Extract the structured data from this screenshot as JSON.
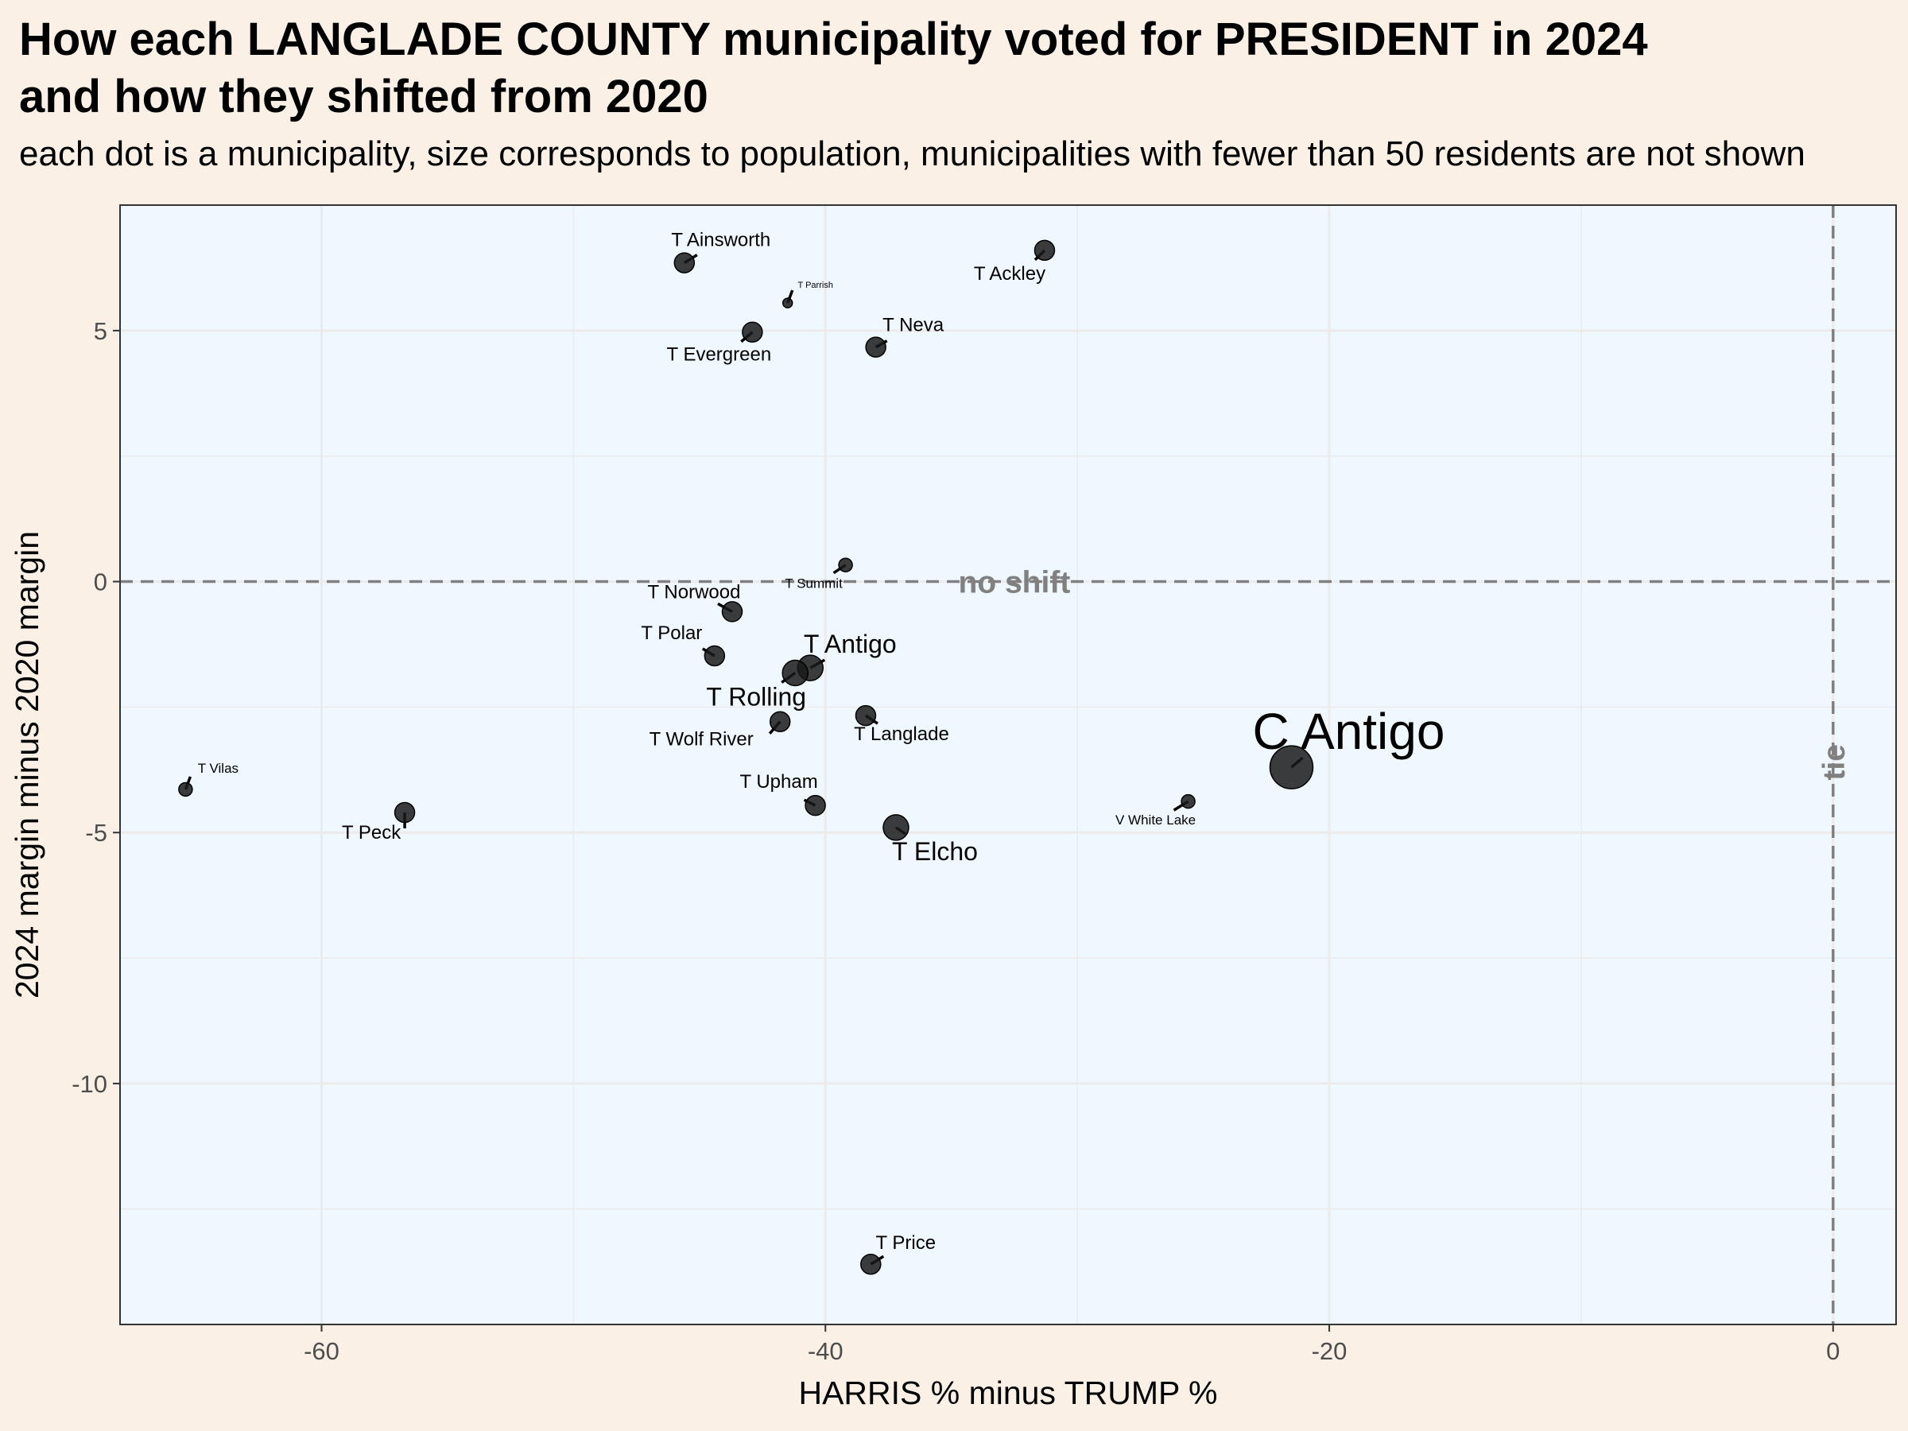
{
  "title_line1": "How each LANGLADE COUNTY municipality voted for PRESIDENT in 2024",
  "title_line2": "and how they shifted from 2020",
  "subtitle": "each dot is a municipality, size corresponds to population, municipalities with fewer than 50 residents are not shown",
  "colors": {
    "page_background": "#faf0e6",
    "panel_background": "#f0f8ff",
    "grid": "#ebebeb",
    "point": "#1a1a1a",
    "reference_line": "#808080"
  },
  "chart_data": {
    "type": "scatter",
    "xlabel": "HARRIS % minus TRUMP %",
    "ylabel": "2024 margin minus 2020 margin",
    "xlim": [
      -68,
      2.5
    ],
    "ylim": [
      -14.8,
      7.5
    ],
    "xticks": [
      -60,
      -40,
      -20,
      0
    ],
    "yticks": [
      -10,
      -5,
      0,
      5
    ],
    "grid": true,
    "reference_lines": [
      {
        "axis": "y",
        "value": 0,
        "label": "no shift"
      },
      {
        "axis": "x",
        "value": 0,
        "label": "tie"
      }
    ],
    "size_encoding": "population",
    "points": [
      {
        "name": "T Ainsworth",
        "x": -45.6,
        "y": 6.35,
        "size": "medium"
      },
      {
        "name": "T Parrish",
        "x": -41.5,
        "y": 5.55,
        "size": "tiny"
      },
      {
        "name": "T Ackley",
        "x": -31.3,
        "y": 6.6,
        "size": "medium"
      },
      {
        "name": "T Evergreen",
        "x": -42.9,
        "y": 4.97,
        "size": "medium"
      },
      {
        "name": "T Neva",
        "x": -38.0,
        "y": 4.67,
        "size": "medium"
      },
      {
        "name": "T Summit",
        "x": -39.2,
        "y": 0.33,
        "size": "small"
      },
      {
        "name": "T Norwood",
        "x": -43.7,
        "y": -0.6,
        "size": "medium"
      },
      {
        "name": "T Polar",
        "x": -44.4,
        "y": -1.48,
        "size": "medium"
      },
      {
        "name": "T Antigo",
        "x": -40.6,
        "y": -1.72,
        "size": "large"
      },
      {
        "name": "T Rolling",
        "x": -41.2,
        "y": -1.82,
        "size": "large"
      },
      {
        "name": "T Langlade",
        "x": -38.4,
        "y": -2.67,
        "size": "medium"
      },
      {
        "name": "T Wolf River",
        "x": -41.8,
        "y": -2.79,
        "size": "medium"
      },
      {
        "name": "C Antigo",
        "x": -21.5,
        "y": -3.7,
        "size": "xlarge"
      },
      {
        "name": "T Vilas",
        "x": -65.4,
        "y": -4.14,
        "size": "small"
      },
      {
        "name": "V White Lake",
        "x": -25.6,
        "y": -4.38,
        "size": "small"
      },
      {
        "name": "T Upham",
        "x": -40.4,
        "y": -4.46,
        "size": "medium"
      },
      {
        "name": "T Peck",
        "x": -56.7,
        "y": -4.6,
        "size": "medium"
      },
      {
        "name": "T Elcho",
        "x": -37.2,
        "y": -4.9,
        "size": "large"
      },
      {
        "name": "T Price",
        "x": -38.2,
        "y": -13.6,
        "size": "medium"
      }
    ]
  }
}
